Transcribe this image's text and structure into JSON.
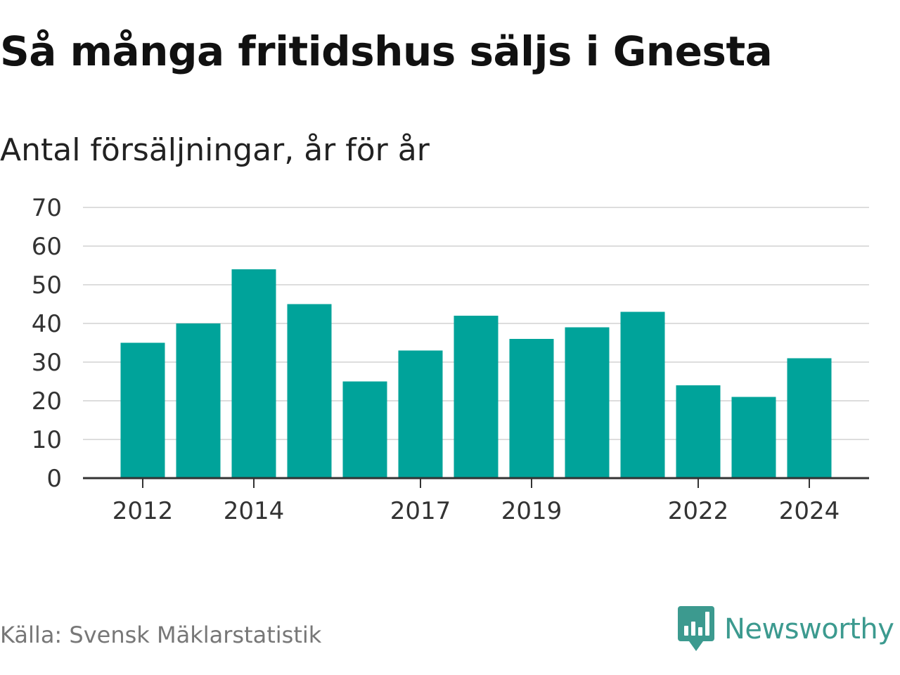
{
  "title": "Så många fritidshus säljs i Gnesta",
  "subtitle": "Antal försäljningar, år för år",
  "source": "Källa: Svensk Mäklarstatistik",
  "brand": {
    "name": "Newsworthy",
    "icon": "newsworthy-logo-icon",
    "color": "#3c9a8f"
  },
  "colors": {
    "bar": "#00a39a",
    "grid": "#dddddd",
    "axis": "#333333"
  },
  "chart_data": {
    "type": "bar",
    "categories": [
      "2012",
      "2013",
      "2014",
      "2015",
      "2016",
      "2017",
      "2018",
      "2019",
      "2020",
      "2021",
      "2022",
      "2023",
      "2024"
    ],
    "values": [
      35,
      40,
      54,
      45,
      25,
      33,
      42,
      36,
      39,
      43,
      24,
      21,
      31
    ],
    "x_tick_labels": [
      "2012",
      "2014",
      "2017",
      "2019",
      "2022",
      "2024"
    ],
    "y_ticks": [
      0,
      10,
      20,
      30,
      40,
      50,
      60,
      70
    ],
    "ylim": [
      0,
      70
    ],
    "title": "Så många fritidshus säljs i Gnesta",
    "subtitle": "Antal försäljningar, år för år",
    "xlabel": "",
    "ylabel": "",
    "grid": true,
    "legend": "none"
  }
}
